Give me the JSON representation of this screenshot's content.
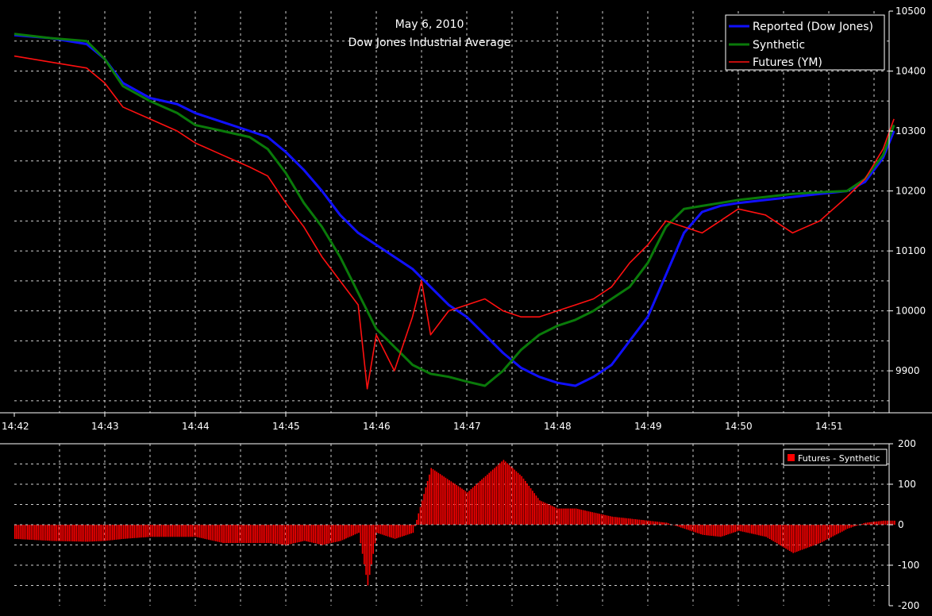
{
  "colors": {
    "background": "#000000",
    "grid": "#cfcfcf",
    "axis": "#ffffff",
    "reported": "#1010ff",
    "synthetic": "#0a7a0a",
    "futures": "#ff1010",
    "diff": "#ff0000"
  },
  "chart_data": [
    {
      "type": "line",
      "title": "May 6, 2010",
      "subtitle": "Dow Jones Industrial Average",
      "xlim_min": [
        0,
        9.72
      ],
      "ylim": [
        9830,
        10500
      ],
      "grid": true,
      "legend_position": "top-right",
      "x_ticks": [
        "14:42",
        "14:43",
        "14:44",
        "14:45",
        "14:46",
        "14:47",
        "14:48",
        "14:49",
        "14:50",
        "14:51"
      ],
      "y_ticks": [
        9900,
        10000,
        10100,
        10200,
        10300,
        10400,
        10500
      ],
      "series": [
        {
          "name": "Reported (Dow Jones)",
          "color": "#1010ff",
          "points": [
            [
              0,
              10460
            ],
            [
              0.4,
              10455
            ],
            [
              0.8,
              10445
            ],
            [
              1.0,
              10420
            ],
            [
              1.2,
              10380
            ],
            [
              1.5,
              10355
            ],
            [
              1.8,
              10345
            ],
            [
              2.0,
              10330
            ],
            [
              2.3,
              10315
            ],
            [
              2.6,
              10300
            ],
            [
              2.8,
              10290
            ],
            [
              3.0,
              10265
            ],
            [
              3.2,
              10235
            ],
            [
              3.4,
              10200
            ],
            [
              3.6,
              10160
            ],
            [
              3.8,
              10130
            ],
            [
              4.0,
              10110
            ],
            [
              4.2,
              10090
            ],
            [
              4.4,
              10070
            ],
            [
              4.6,
              10040
            ],
            [
              4.8,
              10010
            ],
            [
              5.0,
              9990
            ],
            [
              5.2,
              9960
            ],
            [
              5.4,
              9930
            ],
            [
              5.6,
              9905
            ],
            [
              5.8,
              9890
            ],
            [
              6.0,
              9880
            ],
            [
              6.2,
              9875
            ],
            [
              6.4,
              9890
            ],
            [
              6.6,
              9910
            ],
            [
              6.8,
              9950
            ],
            [
              7.0,
              9990
            ],
            [
              7.2,
              10060
            ],
            [
              7.4,
              10130
            ],
            [
              7.6,
              10165
            ],
            [
              7.8,
              10175
            ],
            [
              8.0,
              10180
            ],
            [
              8.3,
              10185
            ],
            [
              8.6,
              10190
            ],
            [
              8.9,
              10195
            ],
            [
              9.2,
              10200
            ],
            [
              9.4,
              10215
            ],
            [
              9.6,
              10255
            ],
            [
              9.72,
              10300
            ]
          ]
        },
        {
          "name": "Synthetic",
          "color": "#0a7a0a",
          "points": [
            [
              0,
              10462
            ],
            [
              0.4,
              10455
            ],
            [
              0.8,
              10450
            ],
            [
              1.0,
              10420
            ],
            [
              1.2,
              10375
            ],
            [
              1.5,
              10350
            ],
            [
              1.8,
              10330
            ],
            [
              2.0,
              10310
            ],
            [
              2.3,
              10300
            ],
            [
              2.6,
              10290
            ],
            [
              2.8,
              10270
            ],
            [
              3.0,
              10230
            ],
            [
              3.2,
              10180
            ],
            [
              3.4,
              10140
            ],
            [
              3.6,
              10090
            ],
            [
              3.8,
              10030
            ],
            [
              4.0,
              9970
            ],
            [
              4.2,
              9940
            ],
            [
              4.4,
              9910
            ],
            [
              4.6,
              9895
            ],
            [
              4.8,
              9890
            ],
            [
              5.0,
              9882
            ],
            [
              5.2,
              9875
            ],
            [
              5.4,
              9900
            ],
            [
              5.6,
              9935
            ],
            [
              5.8,
              9960
            ],
            [
              6.0,
              9975
            ],
            [
              6.2,
              9985
            ],
            [
              6.4,
              10000
            ],
            [
              6.6,
              10020
            ],
            [
              6.8,
              10040
            ],
            [
              7.0,
              10080
            ],
            [
              7.2,
              10140
            ],
            [
              7.4,
              10170
            ],
            [
              7.6,
              10175
            ],
            [
              7.8,
              10180
            ],
            [
              8.0,
              10185
            ],
            [
              8.3,
              10190
            ],
            [
              8.6,
              10195
            ],
            [
              8.9,
              10198
            ],
            [
              9.2,
              10200
            ],
            [
              9.4,
              10220
            ],
            [
              9.6,
              10260
            ],
            [
              9.72,
              10310
            ]
          ]
        },
        {
          "name": "Futures (YM)",
          "color": "#ff1010",
          "points": [
            [
              0,
              10425
            ],
            [
              0.4,
              10415
            ],
            [
              0.8,
              10405
            ],
            [
              1.0,
              10380
            ],
            [
              1.2,
              10340
            ],
            [
              1.5,
              10320
            ],
            [
              1.8,
              10300
            ],
            [
              2.0,
              10280
            ],
            [
              2.3,
              10260
            ],
            [
              2.6,
              10240
            ],
            [
              2.8,
              10225
            ],
            [
              3.0,
              10180
            ],
            [
              3.2,
              10140
            ],
            [
              3.4,
              10090
            ],
            [
              3.6,
              10050
            ],
            [
              3.8,
              10010
            ],
            [
              3.9,
              9870
            ],
            [
              4.0,
              9960
            ],
            [
              4.2,
              9900
            ],
            [
              4.4,
              9990
            ],
            [
              4.5,
              10050
            ],
            [
              4.6,
              9960
            ],
            [
              4.8,
              10000
            ],
            [
              5.0,
              10010
            ],
            [
              5.2,
              10020
            ],
            [
              5.4,
              10000
            ],
            [
              5.6,
              9990
            ],
            [
              5.8,
              9990
            ],
            [
              6.0,
              10000
            ],
            [
              6.2,
              10010
            ],
            [
              6.4,
              10020
            ],
            [
              6.6,
              10040
            ],
            [
              6.8,
              10080
            ],
            [
              7.0,
              10110
            ],
            [
              7.2,
              10150
            ],
            [
              7.4,
              10140
            ],
            [
              7.6,
              10130
            ],
            [
              7.8,
              10150
            ],
            [
              8.0,
              10170
            ],
            [
              8.3,
              10160
            ],
            [
              8.6,
              10130
            ],
            [
              8.9,
              10150
            ],
            [
              9.2,
              10190
            ],
            [
              9.4,
              10220
            ],
            [
              9.6,
              10270
            ],
            [
              9.72,
              10320
            ]
          ]
        }
      ]
    },
    {
      "type": "bar",
      "xlim_min": [
        0,
        9.72
      ],
      "ylim": [
        -200,
        200
      ],
      "grid": true,
      "legend_position": "top-right",
      "y_ticks": [
        -200,
        -100,
        0,
        100,
        200
      ],
      "series": [
        {
          "name": "Futures - Synthetic",
          "color": "#ff0000",
          "points": [
            [
              0,
              -35
            ],
            [
              0.4,
              -40
            ],
            [
              0.8,
              -42
            ],
            [
              1.0,
              -40
            ],
            [
              1.2,
              -35
            ],
            [
              1.5,
              -30
            ],
            [
              1.8,
              -30
            ],
            [
              2.0,
              -30
            ],
            [
              2.3,
              -45
            ],
            [
              2.6,
              -45
            ],
            [
              2.8,
              -45
            ],
            [
              3.0,
              -50
            ],
            [
              3.2,
              -40
            ],
            [
              3.4,
              -50
            ],
            [
              3.6,
              -40
            ],
            [
              3.8,
              -20
            ],
            [
              3.9,
              -150
            ],
            [
              4.0,
              -20
            ],
            [
              4.2,
              -35
            ],
            [
              4.4,
              -20
            ],
            [
              4.5,
              60
            ],
            [
              4.6,
              140
            ],
            [
              4.8,
              110
            ],
            [
              5.0,
              80
            ],
            [
              5.2,
              120
            ],
            [
              5.4,
              160
            ],
            [
              5.6,
              120
            ],
            [
              5.8,
              60
            ],
            [
              6.0,
              40
            ],
            [
              6.2,
              40
            ],
            [
              6.4,
              30
            ],
            [
              6.6,
              20
            ],
            [
              6.8,
              15
            ],
            [
              7.0,
              10
            ],
            [
              7.2,
              5
            ],
            [
              7.4,
              -10
            ],
            [
              7.6,
              -25
            ],
            [
              7.8,
              -30
            ],
            [
              8.0,
              -15
            ],
            [
              8.3,
              -30
            ],
            [
              8.6,
              -70
            ],
            [
              8.9,
              -45
            ],
            [
              9.2,
              -10
            ],
            [
              9.4,
              5
            ],
            [
              9.6,
              10
            ],
            [
              9.72,
              10
            ]
          ]
        }
      ]
    }
  ]
}
